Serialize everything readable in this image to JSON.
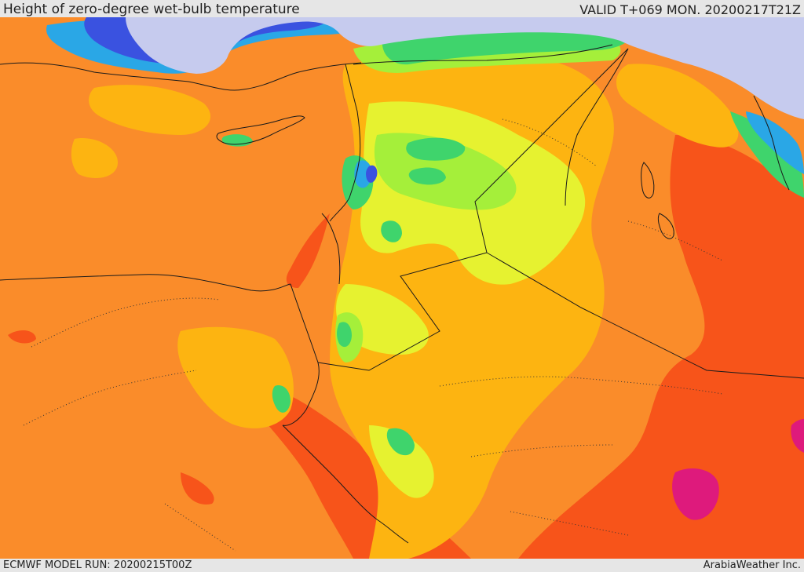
{
  "header": {
    "title": "Height of zero-degree wet-bulb temperature",
    "valid": "VALID T+069 MON. 20200217T21Z"
  },
  "footer": {
    "model_run": "ECMWF MODEL RUN: 20200215T00Z",
    "credit": "ArabiaWeather Inc."
  },
  "map": {
    "field_colors": {
      "freezing_sea": "#c6cbee",
      "very_low": "#3a52e0",
      "low": "#2aa7e6",
      "cool": "#3fd46c",
      "mild": "#a5ef3a",
      "moderate": "#e6f230",
      "warm": "#fdb411",
      "base": "#fa8c2a",
      "hot": "#f7541a",
      "very_hot": "#de1a7c"
    }
  }
}
